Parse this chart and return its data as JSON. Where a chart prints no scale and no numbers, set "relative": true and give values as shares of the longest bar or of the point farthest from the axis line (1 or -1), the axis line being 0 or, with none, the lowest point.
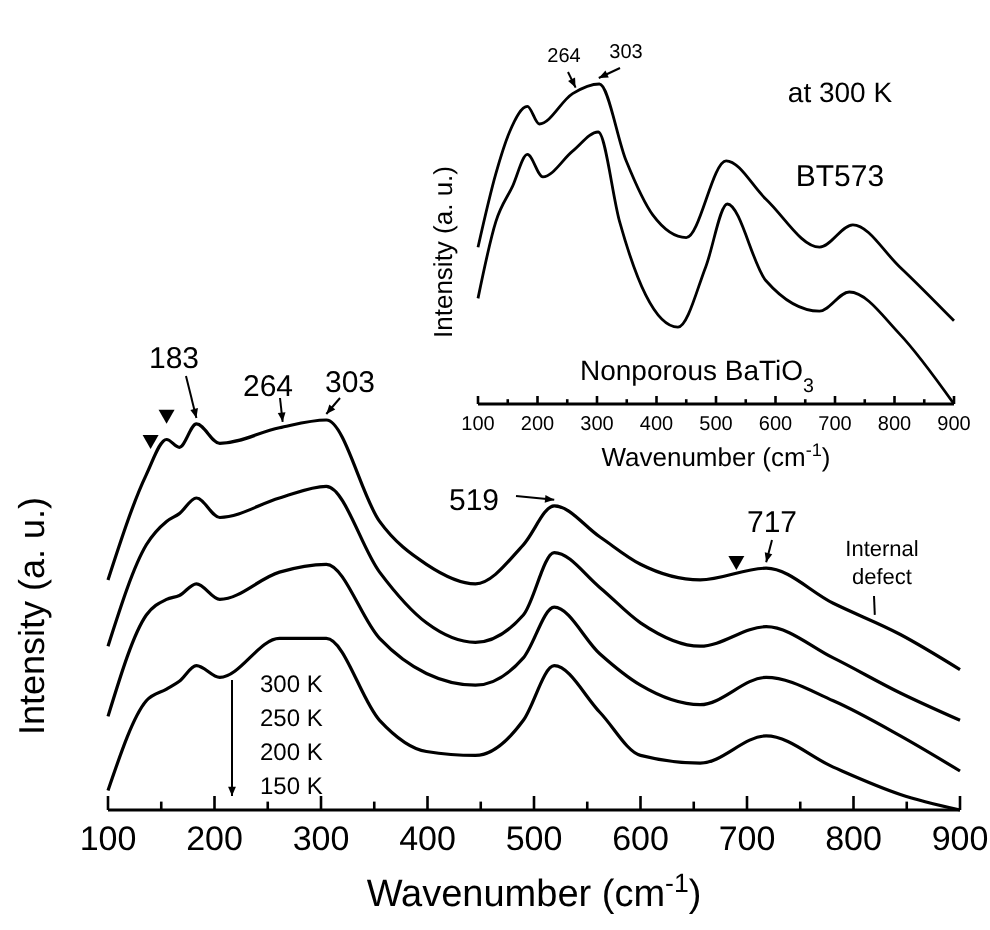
{
  "chart_data": [
    {
      "type": "line",
      "relative": true,
      "xlabel": "Wavenumber (cm$^{-1}$)",
      "ylabel": "Intensity (a. u.)",
      "xlim": [
        100,
        900
      ],
      "xticks": [
        100,
        {
          "value": 150,
          "label": null
        },
        200,
        {
          "value": 250,
          "label": null
        },
        300,
        {
          "value": 350,
          "label": null
        },
        400,
        {
          "value": 450,
          "label": null
        },
        500,
        {
          "value": 550,
          "label": null
        },
        600,
        {
          "value": 650,
          "label": null
        },
        700,
        {
          "value": 750,
          "label": null
        },
        800,
        {
          "value": 850,
          "label": null
        },
        900
      ],
      "tick_labels": "x",
      "grid": false,
      "x": [
        100,
        136,
        155,
        167,
        183,
        205,
        261,
        305,
        355,
        399,
        445,
        490,
        519,
        562,
        600,
        656,
        718,
        781,
        844,
        900
      ],
      "series": [
        {
          "color": "#000000",
          "values": [
            0.59,
            0.86,
            0.95,
            0.93,
            0.99,
            0.94,
            0.98,
            1.0,
            0.74,
            0.63,
            0.58,
            0.68,
            0.78,
            0.7,
            0.63,
            0.59,
            0.62,
            0.53,
            0.45,
            0.36
          ]
        },
        {
          "color": "#000000",
          "values": [
            0.42,
            0.68,
            0.74,
            0.76,
            0.8,
            0.75,
            0.8,
            0.83,
            0.61,
            0.48,
            0.43,
            0.5,
            0.66,
            0.57,
            0.48,
            0.42,
            0.47,
            0.39,
            0.3,
            0.23
          ]
        },
        {
          "color": "#000000",
          "values": [
            0.24,
            0.5,
            0.54,
            0.55,
            0.58,
            0.54,
            0.61,
            0.63,
            0.44,
            0.35,
            0.32,
            0.39,
            0.52,
            0.4,
            0.32,
            0.27,
            0.34,
            0.28,
            0.19,
            0.1
          ]
        },
        {
          "color": "#000000",
          "values": [
            0.05,
            0.28,
            0.31,
            0.33,
            0.37,
            0.34,
            0.44,
            0.44,
            0.23,
            0.15,
            0.14,
            0.23,
            0.37,
            0.25,
            0.14,
            0.12,
            0.19,
            0.11,
            0.04,
            0.0
          ]
        }
      ],
      "annotations": [
        {
          "text": "183",
          "x": 183,
          "y": 0.99
        },
        {
          "text": "264",
          "x": 264,
          "y": 0.98
        },
        {
          "text": "303",
          "x": 305,
          "y": 1.0
        },
        {
          "text": "519",
          "x": 519,
          "y": 0.78
        },
        {
          "text": "717",
          "x": 718,
          "y": 0.62
        },
        {
          "text": "Internal defect",
          "x": 820,
          "y": 0.49
        },
        "300 K",
        "250 K",
        "200 K",
        "150 K"
      ]
    },
    {
      "type": "line",
      "relative": true,
      "title": "at 300 K",
      "xlabel": "Wavenumber (cm$^{-1}$)",
      "ylabel": "Intensity (a. u.)",
      "xlim": [
        100,
        900
      ],
      "xticks": [
        100,
        {
          "value": 150,
          "label": null
        },
        200,
        {
          "value": 250,
          "label": null
        },
        300,
        {
          "value": 350,
          "label": null
        },
        400,
        {
          "value": 450,
          "label": null
        },
        500,
        {
          "value": 550,
          "label": null
        },
        600,
        {
          "value": 650,
          "label": null
        },
        700,
        {
          "value": 750,
          "label": null
        },
        800,
        {
          "value": 850,
          "label": null
        },
        900
      ],
      "tick_labels": "x",
      "grid": false,
      "series": [
        {
          "name": "BT573",
          "color": "#000000",
          "x": [
            100,
            130,
            153,
            183,
            203,
            259,
            304,
            349,
            394,
            450,
            517,
            584,
            674,
            730,
            808,
            900
          ],
          "values": [
            0.49,
            0.72,
            0.85,
            0.93,
            0.875,
            0.97,
            1.0,
            0.76,
            0.59,
            0.52,
            0.76,
            0.64,
            0.49,
            0.56,
            0.43,
            0.26
          ]
        },
        {
          "name": "Nonporous BaTiO$_{3}$",
          "color": "#000000",
          "x": [
            100,
            130,
            158,
            183,
            209,
            259,
            302,
            338,
            382,
            436,
            483,
            519,
            584,
            674,
            724,
            808,
            900
          ],
          "values": [
            0.33,
            0.57,
            0.68,
            0.78,
            0.71,
            0.79,
            0.85,
            0.57,
            0.34,
            0.24,
            0.43,
            0.625,
            0.385,
            0.29,
            0.35,
            0.22,
            0.0
          ]
        }
      ],
      "annotations": [
        {
          "text": "264",
          "x": 264,
          "y": 0.97
        },
        {
          "text": "303",
          "x": 303,
          "y": 1.0
        }
      ]
    }
  ]
}
